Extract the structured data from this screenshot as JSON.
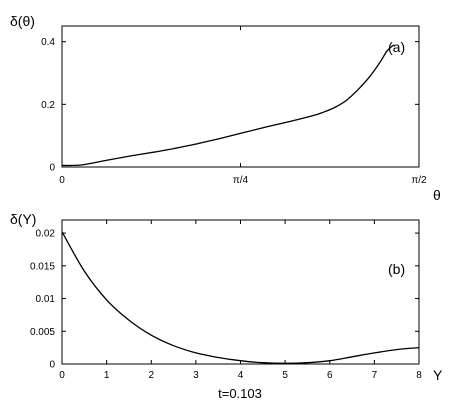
{
  "chart_data": [
    {
      "type": "line",
      "panel_label": "(a)",
      "xlabel": "θ",
      "ylabel": "δ(θ)",
      "xlim": [
        0,
        1.5708
      ],
      "ylim": [
        0,
        0.45
      ],
      "xticks": [
        0,
        0.7854,
        1.5708
      ],
      "xtick_labels": [
        "0",
        "π/4",
        "π/2"
      ],
      "yticks": [
        0,
        0.2,
        0.4
      ],
      "ytick_labels": [
        "0",
        "0.2",
        "0.4"
      ],
      "series": [
        {
          "x": [
            0.0,
            0.05,
            0.1,
            0.2,
            0.3,
            0.4,
            0.5,
            0.6,
            0.7,
            0.8,
            0.9,
            1.0,
            1.1,
            1.15,
            1.2,
            1.25,
            1.3,
            1.35,
            1.4,
            1.43,
            1.46
          ],
          "y": [
            0.005,
            0.005,
            0.008,
            0.022,
            0.035,
            0.047,
            0.06,
            0.075,
            0.092,
            0.11,
            0.128,
            0.145,
            0.163,
            0.175,
            0.19,
            0.212,
            0.245,
            0.285,
            0.335,
            0.37,
            0.39
          ]
        }
      ]
    },
    {
      "type": "line",
      "panel_label": "(b)",
      "xlabel": "Y",
      "ylabel": "δ(Y)",
      "xlim": [
        0,
        8
      ],
      "ylim": [
        0,
        0.022
      ],
      "xticks": [
        0,
        1,
        2,
        3,
        4,
        5,
        6,
        7,
        8
      ],
      "xtick_labels": [
        "0",
        "1",
        "2",
        "3",
        "4",
        "5",
        "6",
        "7",
        "8"
      ],
      "yticks": [
        0,
        0.005,
        0.01,
        0.015,
        0.02
      ],
      "ytick_labels": [
        "0",
        "0.005",
        "0.01",
        "0.015",
        "0.02"
      ],
      "series": [
        {
          "x": [
            0,
            0.5,
            1,
            1.5,
            2,
            2.5,
            3,
            3.5,
            4,
            4.5,
            5,
            5.5,
            6,
            6.5,
            7,
            7.5,
            8
          ],
          "y": [
            0.0202,
            0.0142,
            0.0098,
            0.0067,
            0.0044,
            0.0028,
            0.0017,
            0.001,
            0.0005,
            0.0002,
            0.0001,
            0.0002,
            0.0005,
            0.0011,
            0.0017,
            0.0022,
            0.0025
          ]
        }
      ]
    }
  ],
  "caption": "t=0.103"
}
